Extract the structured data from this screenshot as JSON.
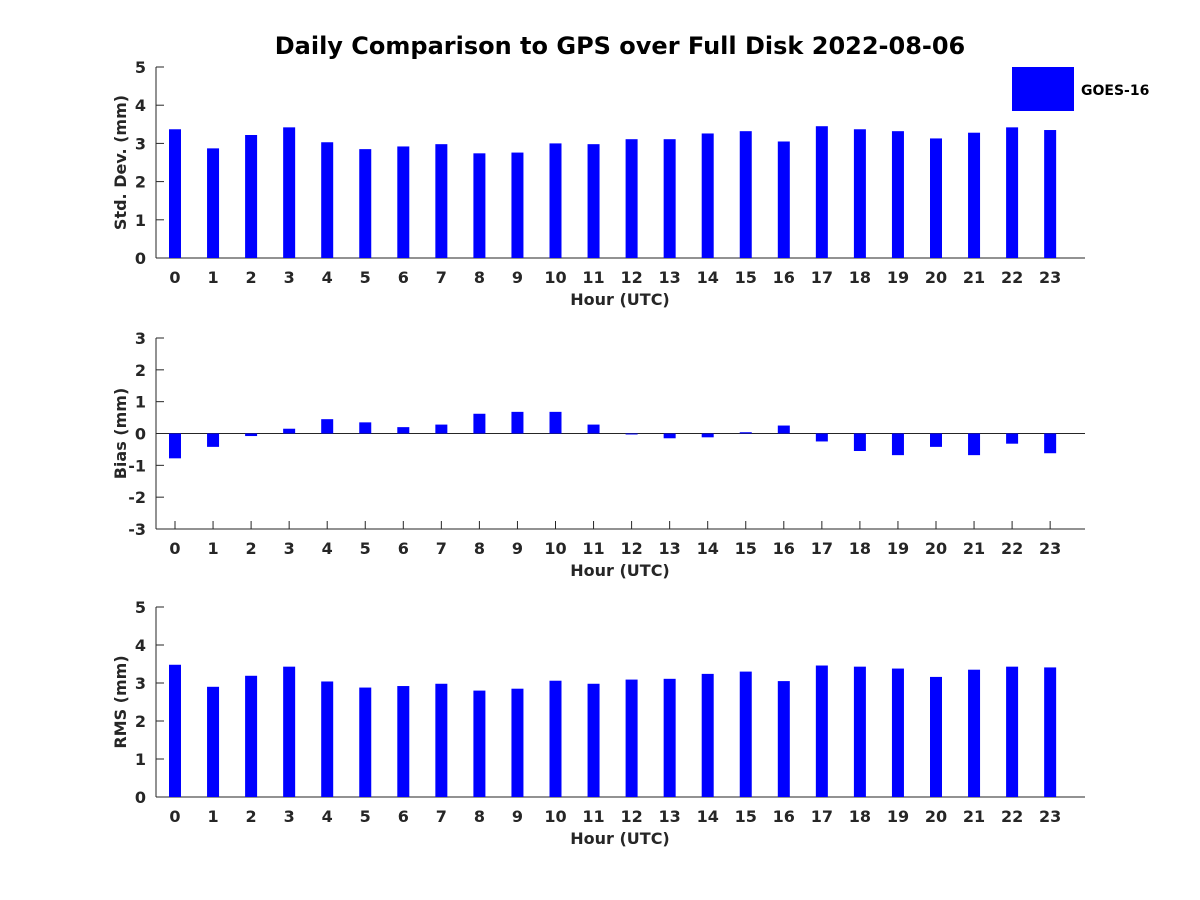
{
  "title": "Daily Comparison to GPS over Full Disk 2022-08-06",
  "legend": {
    "label": "GOES-16",
    "color": "#0000ff"
  },
  "bar_color": "#0000ff",
  "chart_data": [
    {
      "type": "bar",
      "id": "std",
      "categories": [
        "0",
        "1",
        "2",
        "3",
        "4",
        "5",
        "6",
        "7",
        "8",
        "9",
        "10",
        "11",
        "12",
        "13",
        "14",
        "15",
        "16",
        "17",
        "18",
        "19",
        "20",
        "21",
        "22",
        "23"
      ],
      "series": [
        {
          "name": "GOES-16",
          "values": [
            3.37,
            2.87,
            3.22,
            3.42,
            3.03,
            2.85,
            2.92,
            2.98,
            2.74,
            2.76,
            3.0,
            2.98,
            3.11,
            3.11,
            3.26,
            3.32,
            3.05,
            3.45,
            3.37,
            3.32,
            3.13,
            3.28,
            3.42,
            3.35
          ]
        }
      ],
      "xlabel": "Hour (UTC)",
      "ylabel": "Std. Dev. (mm)",
      "ylim": [
        0,
        5
      ],
      "yticks": [
        "0",
        "1",
        "2",
        "3",
        "4",
        "5"
      ]
    },
    {
      "type": "bar",
      "id": "bias",
      "categories": [
        "0",
        "1",
        "2",
        "3",
        "4",
        "5",
        "6",
        "7",
        "8",
        "9",
        "10",
        "11",
        "12",
        "13",
        "14",
        "15",
        "16",
        "17",
        "18",
        "19",
        "20",
        "21",
        "22",
        "23"
      ],
      "series": [
        {
          "name": "GOES-16",
          "values": [
            -0.78,
            -0.42,
            -0.08,
            0.15,
            0.45,
            0.35,
            0.2,
            0.28,
            0.62,
            0.68,
            0.68,
            0.28,
            -0.02,
            -0.15,
            -0.12,
            0.04,
            0.25,
            -0.25,
            -0.55,
            -0.68,
            -0.42,
            -0.68,
            -0.32,
            -0.62
          ]
        }
      ],
      "xlabel": "Hour (UTC)",
      "ylabel": "Bias (mm)",
      "ylim": [
        -3,
        3
      ],
      "yticks": [
        "-3",
        "-2",
        "-1",
        "0",
        "1",
        "2",
        "3"
      ]
    },
    {
      "type": "bar",
      "id": "rms",
      "categories": [
        "0",
        "1",
        "2",
        "3",
        "4",
        "5",
        "6",
        "7",
        "8",
        "9",
        "10",
        "11",
        "12",
        "13",
        "14",
        "15",
        "16",
        "17",
        "18",
        "19",
        "20",
        "21",
        "22",
        "23"
      ],
      "series": [
        {
          "name": "GOES-16",
          "values": [
            3.48,
            2.9,
            3.19,
            3.43,
            3.04,
            2.88,
            2.92,
            2.98,
            2.8,
            2.85,
            3.06,
            2.98,
            3.09,
            3.11,
            3.24,
            3.3,
            3.05,
            3.46,
            3.43,
            3.38,
            3.16,
            3.35,
            3.43,
            3.41
          ]
        }
      ],
      "xlabel": "Hour (UTC)",
      "ylabel": "RMS (mm)",
      "ylim": [
        0,
        5
      ],
      "yticks": [
        "0",
        "1",
        "2",
        "3",
        "4",
        "5"
      ]
    }
  ]
}
